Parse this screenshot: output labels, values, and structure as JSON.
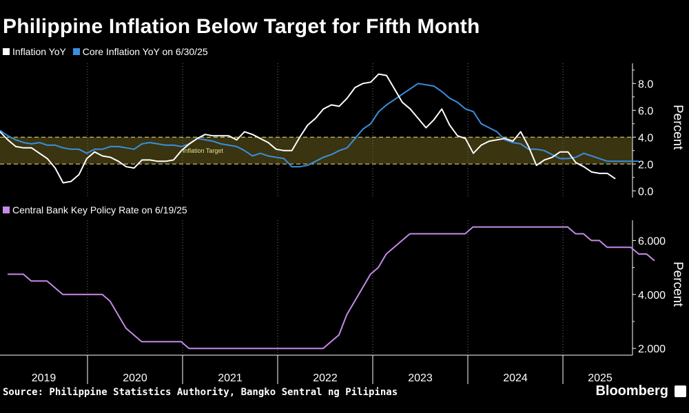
{
  "title": "Philippine Inflation Below Target for Fifth Month",
  "colors": {
    "inflation": "#ffffff",
    "core": "#3a8fe0",
    "policy": "#c88ae8",
    "band": "#3a3410",
    "band_line": "#f0e68c",
    "grid": "#777777"
  },
  "legend_top": [
    {
      "label": "Inflation YoY",
      "color": "#ffffff"
    },
    {
      "label": "Core Inflation YoY on 6/30/25",
      "color": "#3a8fe0"
    }
  ],
  "legend_bottom": [
    {
      "label": "Central Bank Key Policy Rate on 6/19/25",
      "color": "#c88ae8"
    }
  ],
  "source": "Source: Philippine Statistics Authority, Bangko Sentral ng Pilipinas",
  "brand": "Bloomberg",
  "chart_data": [
    {
      "type": "line",
      "ylabel": "Percent",
      "ylim": [
        -0.5,
        9.5
      ],
      "yticks": [
        "8.0",
        "6.0",
        "4.0",
        "2.0",
        "0.0"
      ],
      "ytick_values": [
        8,
        6,
        4,
        2,
        0
      ],
      "x_start": "2019-01",
      "band": {
        "label": "Inflation Target",
        "range": [
          2.0,
          4.0
        ]
      },
      "series": [
        {
          "name": "Inflation YoY",
          "color": "#ffffff",
          "values": [
            4.4,
            3.8,
            3.3,
            3.2,
            3.2,
            2.8,
            2.4,
            1.7,
            0.6,
            0.7,
            1.2,
            2.4,
            2.9,
            2.6,
            2.5,
            2.2,
            1.8,
            1.7,
            2.3,
            2.3,
            2.2,
            2.2,
            2.3,
            3.0,
            3.5,
            3.9,
            4.2,
            4.1,
            4.1,
            4.1,
            3.8,
            4.4,
            4.2,
            3.9,
            3.6,
            3.1,
            3.0,
            3.0,
            4.0,
            4.9,
            5.4,
            6.1,
            6.4,
            6.3,
            6.9,
            7.7,
            8.0,
            8.1,
            8.7,
            8.6,
            7.6,
            6.6,
            6.1,
            5.4,
            4.7,
            5.3,
            6.1,
            4.9,
            4.1,
            3.9,
            2.8,
            3.4,
            3.7,
            3.8,
            3.9,
            3.7,
            4.4,
            3.3,
            1.9,
            2.3,
            2.5,
            2.9,
            2.9,
            2.1,
            1.8,
            1.4,
            1.3,
            1.3,
            0.9
          ]
        },
        {
          "name": "Core Inflation YoY on 6/30/25",
          "color": "#3a8fe0",
          "values": [
            4.5,
            4.1,
            3.8,
            3.6,
            3.5,
            3.6,
            3.4,
            3.4,
            3.2,
            3.1,
            3.1,
            2.8,
            3.1,
            3.1,
            3.3,
            3.3,
            3.2,
            3.1,
            3.5,
            3.6,
            3.5,
            3.4,
            3.4,
            3.3,
            3.5,
            3.9,
            3.8,
            3.7,
            3.5,
            3.4,
            3.3,
            3.0,
            2.6,
            2.8,
            2.6,
            2.5,
            2.4,
            1.8,
            1.8,
            1.9,
            2.2,
            2.5,
            2.7,
            3.0,
            3.2,
            3.9,
            4.6,
            5.0,
            5.9,
            6.4,
            6.8,
            7.2,
            7.6,
            8.0,
            7.9,
            7.8,
            7.4,
            6.9,
            6.6,
            6.1,
            5.9,
            5.0,
            4.7,
            4.4,
            3.8,
            3.6,
            3.5,
            3.1,
            3.1,
            3.0,
            2.7,
            2.4,
            2.4,
            2.5,
            2.8,
            2.6,
            2.4,
            2.2,
            2.2,
            2.2,
            2.2,
            2.2
          ]
        }
      ]
    },
    {
      "type": "line",
      "ylabel": "Percent",
      "ylim": [
        1.75,
        6.75
      ],
      "yticks": [
        "6.000",
        "4.000",
        "2.000"
      ],
      "ytick_values": [
        6,
        4,
        2
      ],
      "x_start": "2019-01",
      "xticks": [
        "2019",
        "2020",
        "2021",
        "2022",
        "2023",
        "2024",
        "2025"
      ],
      "series": [
        {
          "name": "Central Bank Key Policy Rate on 6/19/25",
          "color": "#c88ae8",
          "values": [
            4.75,
            4.75,
            4.75,
            4.5,
            4.5,
            4.5,
            4.25,
            4.0,
            4.0,
            4.0,
            4.0,
            4.0,
            4.0,
            3.75,
            3.25,
            2.75,
            2.5,
            2.25,
            2.25,
            2.25,
            2.25,
            2.25,
            2.25,
            2.0,
            2.0,
            2.0,
            2.0,
            2.0,
            2.0,
            2.0,
            2.0,
            2.0,
            2.0,
            2.0,
            2.0,
            2.0,
            2.0,
            2.0,
            2.0,
            2.0,
            2.0,
            2.25,
            2.5,
            3.25,
            3.75,
            4.25,
            4.75,
            5.0,
            5.5,
            5.75,
            6.0,
            6.25,
            6.25,
            6.25,
            6.25,
            6.25,
            6.25,
            6.25,
            6.25,
            6.5,
            6.5,
            6.5,
            6.5,
            6.5,
            6.5,
            6.5,
            6.5,
            6.5,
            6.5,
            6.5,
            6.5,
            6.5,
            6.25,
            6.25,
            6.0,
            6.0,
            5.75,
            5.75,
            5.75,
            5.75,
            5.5,
            5.5,
            5.25
          ]
        }
      ]
    }
  ]
}
